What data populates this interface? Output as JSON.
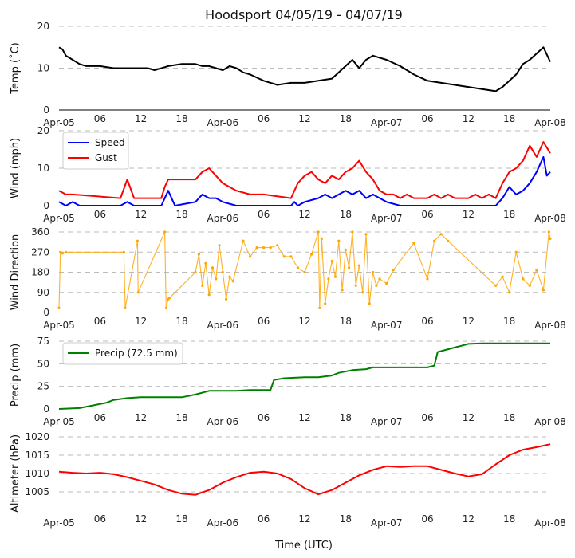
{
  "title": "Hoodsport 04/05/19 - 04/07/19",
  "xlabel": "Time (UTC)",
  "x_tick_labels": [
    "Apr-05",
    "06",
    "12",
    "18",
    "Apr-06",
    "06",
    "12",
    "18",
    "Apr-07",
    "06",
    "12",
    "18",
    "Apr-08"
  ],
  "x_range_hours": [
    0,
    72
  ],
  "colors": {
    "temp": "#000000",
    "speed": "#0000ff",
    "gust": "#ff0000",
    "direction": "#ffa500",
    "precip": "#008000",
    "altimeter": "#ff0000",
    "grid": "#bbbbbb"
  },
  "chart_data": [
    {
      "type": "line",
      "ylabel": "Temp (˚C)",
      "ylim": [
        0,
        20
      ],
      "yticks": [
        "0",
        "10",
        "20"
      ],
      "grid": true,
      "series": [
        {
          "key": "temp",
          "x": [
            0,
            0.5,
            1,
            2,
            3,
            4,
            6,
            8,
            9,
            10,
            12,
            13,
            14,
            16,
            18,
            20,
            21,
            22,
            23,
            24,
            25,
            26,
            27,
            28,
            30,
            32,
            34,
            36,
            38,
            40,
            41,
            42,
            43,
            44,
            45,
            46,
            47,
            48,
            50,
            52,
            54,
            56,
            58,
            60,
            62,
            64,
            65,
            66,
            67,
            68,
            69,
            70,
            71,
            72
          ],
          "y": [
            15,
            14.5,
            13,
            12,
            11,
            10.5,
            10.5,
            10,
            10,
            10,
            10,
            10,
            9.5,
            10.5,
            11,
            11,
            10.5,
            10.5,
            10,
            9.5,
            10.5,
            10,
            9,
            8.5,
            7,
            6,
            6.5,
            6.5,
            7,
            7.5,
            9,
            10.5,
            12,
            10,
            12,
            13,
            12.5,
            12,
            10.5,
            8.5,
            7,
            6.5,
            6,
            5.5,
            5,
            4.5,
            5.5,
            7,
            8.5,
            11,
            12,
            13.5,
            15,
            11.5
          ]
        }
      ]
    },
    {
      "type": "line",
      "ylabel": "Wind (mph)",
      "ylim": [
        0,
        20
      ],
      "yticks": [
        "0",
        "10",
        "20"
      ],
      "grid": true,
      "legend": "top-left",
      "series": [
        {
          "key": "speed",
          "name": "Speed",
          "x": [
            0,
            1,
            2,
            3,
            5,
            9,
            10,
            11,
            13,
            15,
            15.5,
            16,
            17,
            20,
            21,
            22,
            23,
            24,
            26,
            28,
            30,
            32,
            34,
            34.5,
            35,
            36,
            38,
            39,
            40,
            42,
            43,
            44,
            45,
            46,
            47,
            48,
            50,
            52,
            54,
            56,
            58,
            60,
            62,
            64,
            65,
            66,
            67,
            68,
            69,
            70,
            71,
            71.5,
            72
          ],
          "y": [
            1,
            0,
            1,
            0,
            0,
            0,
            1,
            0,
            0,
            0,
            2,
            4,
            0,
            1,
            3,
            2,
            2,
            1,
            0,
            0,
            0,
            0,
            0,
            1,
            0,
            1,
            2,
            3,
            2,
            4,
            3,
            4,
            2,
            3,
            2,
            1,
            0,
            0,
            0,
            0,
            0,
            0,
            0,
            0,
            2,
            5,
            3,
            4,
            6,
            9,
            13,
            8,
            9
          ]
        },
        {
          "key": "gust",
          "name": "Gust",
          "x": [
            0,
            1,
            2,
            9,
            10,
            11,
            15,
            15.5,
            16,
            20,
            21,
            22,
            23,
            24,
            26,
            28,
            30,
            34,
            35,
            36,
            37,
            38,
            39,
            40,
            41,
            42,
            43,
            44,
            45,
            46,
            47,
            48,
            49,
            50,
            51,
            52,
            53,
            54,
            55,
            56,
            57,
            58,
            59,
            60,
            61,
            62,
            63,
            64,
            65,
            66,
            67,
            68,
            69,
            70,
            71,
            72
          ],
          "y": [
            4,
            3,
            3,
            2,
            7,
            2,
            2,
            5,
            7,
            7,
            9,
            10,
            8,
            6,
            4,
            3,
            3,
            2,
            6,
            8,
            9,
            7,
            6,
            8,
            7,
            9,
            10,
            12,
            9,
            7,
            4,
            3,
            3,
            2,
            3,
            2,
            2,
            2,
            3,
            2,
            3,
            2,
            2,
            2,
            3,
            2,
            3,
            2,
            6,
            9,
            10,
            12,
            16,
            13,
            17,
            14
          ]
        }
      ]
    },
    {
      "type": "scatter",
      "ylabel": "Wind Direction",
      "ylim": [
        0,
        360
      ],
      "yticks": [
        "0",
        "90",
        "180",
        "270",
        "360"
      ],
      "grid": true,
      "series": [
        {
          "key": "direction",
          "x": [
            0,
            0.2,
            0.5,
            1,
            9.5,
            9.7,
            11.5,
            11.6,
            15.5,
            15.7,
            16,
            16.2,
            20,
            20.5,
            21,
            21.5,
            22,
            22.5,
            23,
            23.5,
            24,
            24.5,
            25,
            25.5,
            27,
            28,
            29,
            30,
            31,
            32,
            33,
            34,
            35,
            36,
            37,
            38,
            38.2,
            38.5,
            39,
            39.5,
            40,
            40.5,
            41,
            41.5,
            42,
            42.5,
            43,
            43.5,
            44,
            44.5,
            45,
            45.5,
            46,
            46.5,
            47,
            48,
            49,
            52,
            54,
            55,
            56,
            57,
            64,
            65,
            66,
            67,
            68,
            69,
            70,
            71,
            71.8,
            72
          ],
          "y": [
            20,
            270,
            265,
            270,
            270,
            20,
            320,
            90,
            360,
            20,
            60,
            65,
            180,
            260,
            120,
            220,
            80,
            200,
            150,
            300,
            180,
            60,
            160,
            140,
            320,
            250,
            290,
            290,
            290,
            300,
            250,
            250,
            200,
            180,
            260,
            360,
            20,
            330,
            40,
            150,
            230,
            160,
            320,
            100,
            280,
            200,
            360,
            120,
            210,
            90,
            350,
            40,
            180,
            120,
            150,
            130,
            190,
            310,
            150,
            320,
            350,
            320,
            120,
            160,
            90,
            270,
            150,
            120,
            190,
            100,
            360,
            330
          ]
        }
      ]
    },
    {
      "type": "line",
      "ylabel": "Precip (mm)",
      "ylim": [
        0,
        75
      ],
      "yticks": [
        "0",
        "25",
        "50",
        "75"
      ],
      "grid": true,
      "legend": "top-left",
      "series": [
        {
          "key": "precip",
          "name": "Precip (72.5 mm)",
          "x": [
            0,
            3,
            5,
            7,
            8,
            10,
            12,
            16,
            18,
            20,
            21,
            22,
            24,
            26,
            28,
            30,
            31,
            31.5,
            33,
            36,
            38,
            40,
            41,
            43,
            45,
            46,
            48,
            50,
            52,
            54,
            55,
            55.5,
            56,
            58,
            59,
            60,
            62,
            64,
            66,
            68,
            70,
            72
          ],
          "y": [
            0,
            1,
            4,
            7,
            10,
            12,
            13,
            13,
            13,
            16,
            18,
            20,
            20,
            20,
            21,
            21,
            21,
            32,
            34,
            35,
            35,
            37,
            40,
            43,
            44,
            46,
            46,
            46,
            46,
            46,
            48,
            63,
            64,
            68,
            70,
            72,
            72.5,
            72.5,
            72.5,
            72.5,
            72.5,
            72.5
          ]
        }
      ]
    },
    {
      "type": "line",
      "ylabel": "Altimeter (hPa)",
      "ylim": [
        1000,
        1020
      ],
      "yticks": [
        "1005",
        "1010",
        "1015",
        "1020"
      ],
      "grid": true,
      "series": [
        {
          "key": "altimeter",
          "x": [
            0,
            2,
            4,
            6,
            8,
            10,
            12,
            14,
            16,
            18,
            20,
            22,
            24,
            26,
            28,
            30,
            32,
            34,
            36,
            38,
            40,
            42,
            44,
            46,
            48,
            50,
            52,
            54,
            56,
            58,
            60,
            62,
            64,
            66,
            68,
            70,
            72
          ],
          "y": [
            1010.5,
            1010.2,
            1010,
            1010.2,
            1009.8,
            1009,
            1008,
            1007,
            1005.5,
            1004.5,
            1004.2,
            1005.5,
            1007.5,
            1009,
            1010.2,
            1010.5,
            1010,
            1008.5,
            1006,
            1004.3,
            1005.5,
            1007.5,
            1009.5,
            1011,
            1012,
            1011.8,
            1012,
            1012,
            1011,
            1010,
            1009.2,
            1009.8,
            1012.5,
            1015,
            1016.5,
            1017.2,
            1018
          ]
        }
      ]
    }
  ]
}
